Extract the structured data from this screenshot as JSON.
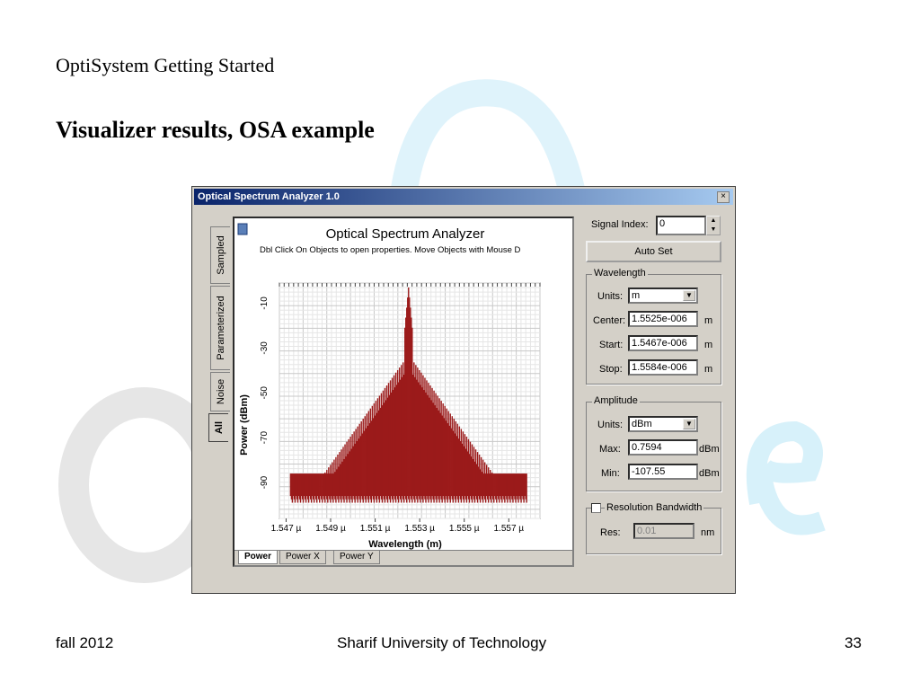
{
  "slide": {
    "title": "OptiSystem Getting Started",
    "heading": "Visualizer results, OSA example",
    "footer_left": "fall 2012",
    "footer_center": "Sharif University of Technology",
    "footer_right": "33"
  },
  "window": {
    "title": "Optical Spectrum Analyzer 1.0",
    "close_glyph": "×",
    "side_tabs": [
      "Sampled",
      "Parameterized",
      "Noise",
      "All"
    ],
    "active_side_tab": "All"
  },
  "plot": {
    "title": "Optical Spectrum Analyzer",
    "hint": "Dbl Click On Objects to open properties.  Move Objects with Mouse D",
    "bottom_tabs": [
      "Power",
      "Power X",
      "Power Y"
    ],
    "active_bottom_tab": "Power"
  },
  "chart_data": {
    "type": "line",
    "xlabel": "Wavelength (m)",
    "ylabel": "Power (dBm)",
    "x_ticks": [
      "1.547 µ",
      "1.549 µ",
      "1.551 µ",
      "1.553 µ",
      "1.555 µ",
      "1.557 µ"
    ],
    "x_tick_values": [
      1.547,
      1.549,
      1.551,
      1.553,
      1.555,
      1.557
    ],
    "y_ticks": [
      "-10",
      "-30",
      "-50",
      "-70",
      "-90"
    ],
    "y_tick_values": [
      -10,
      -30,
      -50,
      -70,
      -90
    ],
    "xlim": [
      1.5467,
      1.5584
    ],
    "ylim": [
      -106,
      -1
    ],
    "grid": true,
    "series_color": "#9b1a1a",
    "spectrum_envelope": {
      "center": 1.5525,
      "peak": -3,
      "floor": -96,
      "x_start": 1.5472,
      "x_end": 1.5578
    }
  },
  "controls": {
    "signal_index_label": "Signal Index:",
    "signal_index_value": "0",
    "auto_set_label": "Auto Set",
    "wavelength": {
      "group_label": "Wavelength",
      "units_label": "Units:",
      "units_value": "m",
      "center_label": "Center:",
      "center_value": "1.5525e-006",
      "start_label": "Start:",
      "start_value": "1.5467e-006",
      "stop_label": "Stop:",
      "stop_value": "1.5584e-006",
      "unit": "m"
    },
    "amplitude": {
      "group_label": "Amplitude",
      "units_label": "Units:",
      "units_value": "dBm",
      "max_label": "Max:",
      "max_value": "0.7594",
      "min_label": "Min:",
      "min_value": "-107.55",
      "unit": "dBm"
    },
    "resolution": {
      "group_label": "Resolution Bandwidth",
      "res_label": "Res:",
      "res_value": "0.01",
      "unit": "nm"
    }
  }
}
